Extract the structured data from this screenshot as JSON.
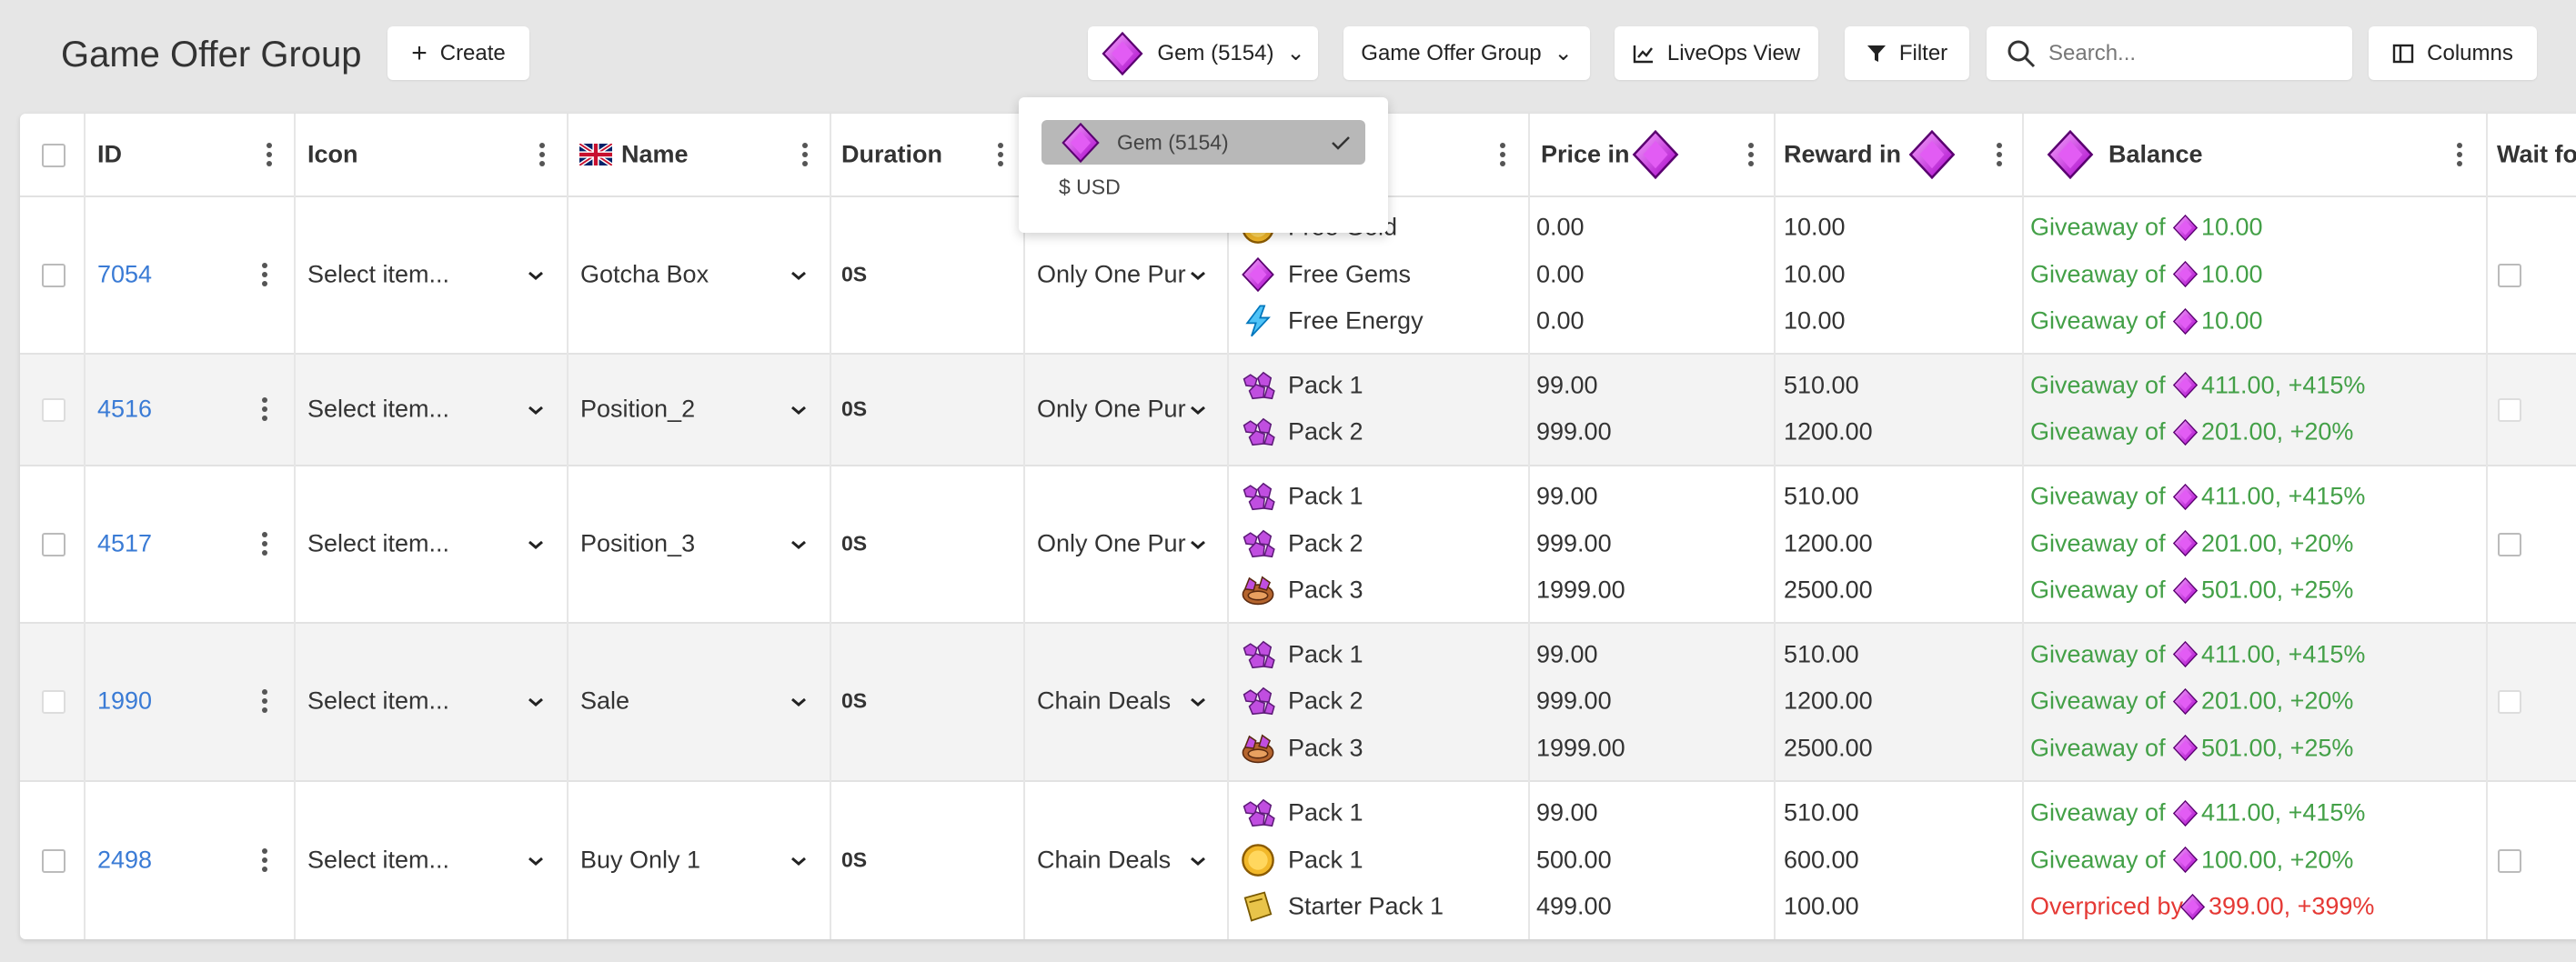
{
  "header": {
    "title": "Game Offer Group",
    "create": "Create",
    "currency": "Gem (5154)",
    "group": "Game Offer Group",
    "liveops": "LiveOps View",
    "filter": "Filter",
    "search_placeholder": "Search...",
    "columns": "Columns"
  },
  "dropdown": {
    "options": [
      "Gem (5154)",
      "$ USD"
    ]
  },
  "table": {
    "columns": [
      "ID",
      "Icon",
      "Name",
      "Duration",
      "Price in",
      "Reward in",
      "Balance",
      "Wait fo"
    ],
    "rows": [
      {
        "id": "7054",
        "icon": "Select item...",
        "name": "Gotcha Box",
        "duration": "0S",
        "type": "Only One Pur",
        "items": [
          {
            "icon": "coin",
            "name": "Free Gold",
            "price": "0.00",
            "reward": "10.00",
            "balance_label": "Giveaway of",
            "balance": "10.00",
            "color": "#43a047"
          },
          {
            "icon": "gem",
            "name": "Free Gems",
            "price": "0.00",
            "reward": "10.00",
            "balance_label": "Giveaway of",
            "balance": "10.00",
            "color": "#43a047"
          },
          {
            "icon": "energy",
            "name": "Free Energy",
            "price": "0.00",
            "reward": "10.00",
            "balance_label": "Giveaway of",
            "balance": "10.00",
            "color": "#43a047"
          }
        ]
      },
      {
        "id": "4516",
        "icon": "Select item...",
        "name": "Position_2",
        "duration": "0S",
        "type": "Only One Pur",
        "items": [
          {
            "icon": "pack",
            "name": "Pack 1",
            "price": "99.00",
            "reward": "510.00",
            "balance_label": "Giveaway of",
            "balance": "411.00, +415%",
            "color": "#43a047"
          },
          {
            "icon": "pack",
            "name": "Pack 2",
            "price": "999.00",
            "reward": "1200.00",
            "balance_label": "Giveaway of",
            "balance": "201.00, +20%",
            "color": "#43a047"
          }
        ]
      },
      {
        "id": "4517",
        "icon": "Select item...",
        "name": "Position_3",
        "duration": "0S",
        "type": "Only One Pur",
        "items": [
          {
            "icon": "pack",
            "name": "Pack 1",
            "price": "99.00",
            "reward": "510.00",
            "balance_label": "Giveaway of",
            "balance": "411.00, +415%",
            "color": "#43a047"
          },
          {
            "icon": "pack",
            "name": "Pack 2",
            "price": "999.00",
            "reward": "1200.00",
            "balance_label": "Giveaway of",
            "balance": "201.00, +20%",
            "color": "#43a047"
          },
          {
            "icon": "pack3",
            "name": "Pack 3",
            "price": "1999.00",
            "reward": "2500.00",
            "balance_label": "Giveaway of",
            "balance": "501.00, +25%",
            "color": "#43a047"
          }
        ]
      },
      {
        "id": "1990",
        "icon": "Select item...",
        "name": "Sale",
        "duration": "0S",
        "type": "Chain Deals",
        "items": [
          {
            "icon": "pack",
            "name": "Pack 1",
            "price": "99.00",
            "reward": "510.00",
            "balance_label": "Giveaway of",
            "balance": "411.00, +415%",
            "color": "#43a047"
          },
          {
            "icon": "pack",
            "name": "Pack 2",
            "price": "999.00",
            "reward": "1200.00",
            "balance_label": "Giveaway of",
            "balance": "201.00, +20%",
            "color": "#43a047"
          },
          {
            "icon": "pack3",
            "name": "Pack 3",
            "price": "1999.00",
            "reward": "2500.00",
            "balance_label": "Giveaway of",
            "balance": "501.00, +25%",
            "color": "#43a047"
          }
        ]
      },
      {
        "id": "2498",
        "icon": "Select item...",
        "name": "Buy Only 1",
        "duration": "0S",
        "type": "Chain Deals",
        "items": [
          {
            "icon": "pack",
            "name": "Pack 1",
            "price": "99.00",
            "reward": "510.00",
            "balance_label": "Giveaway of",
            "balance": "411.00, +415%",
            "color": "#43a047"
          },
          {
            "icon": "coin",
            "name": "Pack 1",
            "price": "500.00",
            "reward": "600.00",
            "balance_label": "Giveaway of",
            "balance": "100.00, +20%",
            "color": "#43a047"
          },
          {
            "icon": "starter",
            "name": "Starter Pack 1",
            "price": "499.00",
            "reward": "100.00",
            "balance_label": "Overpriced by",
            "balance": "399.00, +399%",
            "color": "#e53935"
          }
        ]
      }
    ]
  }
}
